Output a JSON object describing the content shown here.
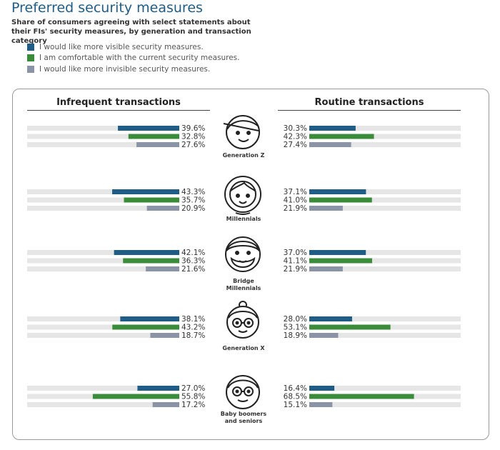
{
  "title": "Preferred security measures",
  "subtitle": "Share of consumers agreeing with select statements about their FIs' security measures, by generation and transaction category",
  "legend": [
    {
      "label": "I would like more visible security measures.",
      "color": "#1f5d86"
    },
    {
      "label": "I am comfortable with the current security measures.",
      "color": "#3a8c3a"
    },
    {
      "label": "I would like more invisible security measures.",
      "color": "#8a94a6"
    }
  ],
  "colors": {
    "track": "#e6e6e6"
  },
  "chart_data": {
    "type": "bar",
    "panels": [
      "Infrequent transactions",
      "Routine transactions"
    ],
    "categories": [
      "Generation Z",
      "Millennials",
      "Bridge Millennials",
      "Generation X",
      "Baby boomers and seniors"
    ],
    "icons": [
      "gen-z-face-icon",
      "millennial-face-icon",
      "bridge-millennial-face-icon",
      "gen-x-face-icon",
      "boomer-face-icon"
    ],
    "xlim": [
      0,
      100
    ],
    "series": [
      {
        "name": "I would like more visible security measures.",
        "infrequent": [
          39.6,
          43.3,
          42.1,
          38.1,
          27.0
        ],
        "routine": [
          30.3,
          37.1,
          37.0,
          28.0,
          16.4
        ]
      },
      {
        "name": "I am comfortable with the current security measures.",
        "infrequent": [
          32.8,
          35.7,
          36.3,
          43.2,
          55.8
        ],
        "routine": [
          42.3,
          41.0,
          41.1,
          53.1,
          68.5
        ]
      },
      {
        "name": "I would like more invisible security measures.",
        "infrequent": [
          27.6,
          20.9,
          21.6,
          18.7,
          17.2
        ],
        "routine": [
          27.4,
          21.9,
          21.9,
          18.9,
          15.1
        ]
      }
    ],
    "labels": {
      "infrequent": [
        [
          "39.6%",
          "32.8%",
          "27.6%"
        ],
        [
          "43.3%",
          "35.7%",
          "20.9%"
        ],
        [
          "42.1%",
          "36.3%",
          "21.6%"
        ],
        [
          "38.1%",
          "43.2%",
          "18.7%"
        ],
        [
          "27.0%",
          "55.8%",
          "17.2%"
        ]
      ],
      "routine": [
        [
          "30.3%",
          "42.3%",
          "27.4%"
        ],
        [
          "37.1%",
          "41.0%",
          "21.9%"
        ],
        [
          "37.0%",
          "41.1%",
          "21.9%"
        ],
        [
          "28.0%",
          "53.1%",
          "18.9%"
        ],
        [
          "16.4%",
          "68.5%",
          "15.1%"
        ]
      ]
    }
  }
}
